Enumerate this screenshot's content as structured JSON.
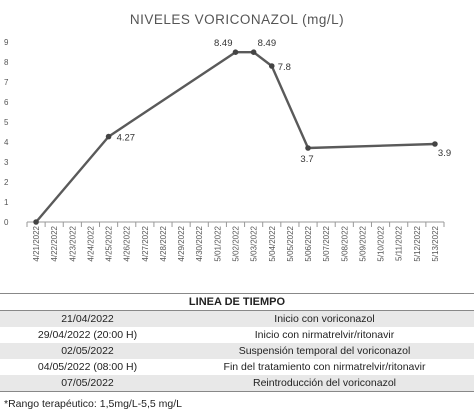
{
  "chart_data": {
    "type": "line",
    "title": "NIVELES VORICONAZOL (mg/L)",
    "xlabel": "",
    "ylabel": "",
    "categories": [
      "4/21/2022",
      "4/22/2022",
      "4/23/2022",
      "4/24/2022",
      "4/25/2022",
      "4/26/2022",
      "4/27/2022",
      "4/28/2022",
      "4/29/2022",
      "4/30/2022",
      "5/01/2022",
      "5/02/2022",
      "5/03/2022",
      "5/04/2022",
      "5/05/2022",
      "5/06/2022",
      "5/07/2022",
      "5/08/2022",
      "5/09/2022",
      "5/10/2022",
      "5/11/2022",
      "5/12/2022",
      "5/13/2022"
    ],
    "ylim": [
      0,
      9
    ],
    "yticks": [
      0,
      1,
      2,
      3,
      4,
      5,
      6,
      7,
      8,
      9
    ],
    "grid": false,
    "legend": "none",
    "color": "#5a5a5a",
    "series": [
      {
        "points": [
          {
            "x": "4/21/2022",
            "y": 0,
            "label": ""
          },
          {
            "x": "4/25/2022",
            "y": 4.27,
            "label": "4.27"
          },
          {
            "x": "5/02/2022",
            "y": 8.49,
            "label": "8.49"
          },
          {
            "x": "5/03/2022",
            "y": 8.49,
            "label": "8.49"
          },
          {
            "x": "5/04/2022",
            "y": 7.8,
            "label": "7.8"
          },
          {
            "x": "5/06/2022",
            "y": 3.7,
            "label": "3.7"
          },
          {
            "x": "5/13/2022",
            "y": 3.9,
            "label": "3.9"
          }
        ]
      }
    ]
  },
  "timeline": {
    "header": "LINEA DE TIEMPO",
    "rows": [
      {
        "date": "21/04/2022",
        "event": "Inicio con voriconazol"
      },
      {
        "date": "29/04/2022 (20:00 H)",
        "event": "Inicio con nirmatrelvir/ritonavir"
      },
      {
        "date": "02/05/2022",
        "event": "Suspensión temporal del voriconazol"
      },
      {
        "date": "04/05/2022 (08:00 H)",
        "event": "Fin del tratamiento con nirmatrelvir/ritonavir"
      },
      {
        "date": "07/05/2022",
        "event": "Reintroducción del voriconazol"
      }
    ]
  },
  "footnote": "*Rango terapéutico: 1,5mg/L-5,5 mg/L"
}
